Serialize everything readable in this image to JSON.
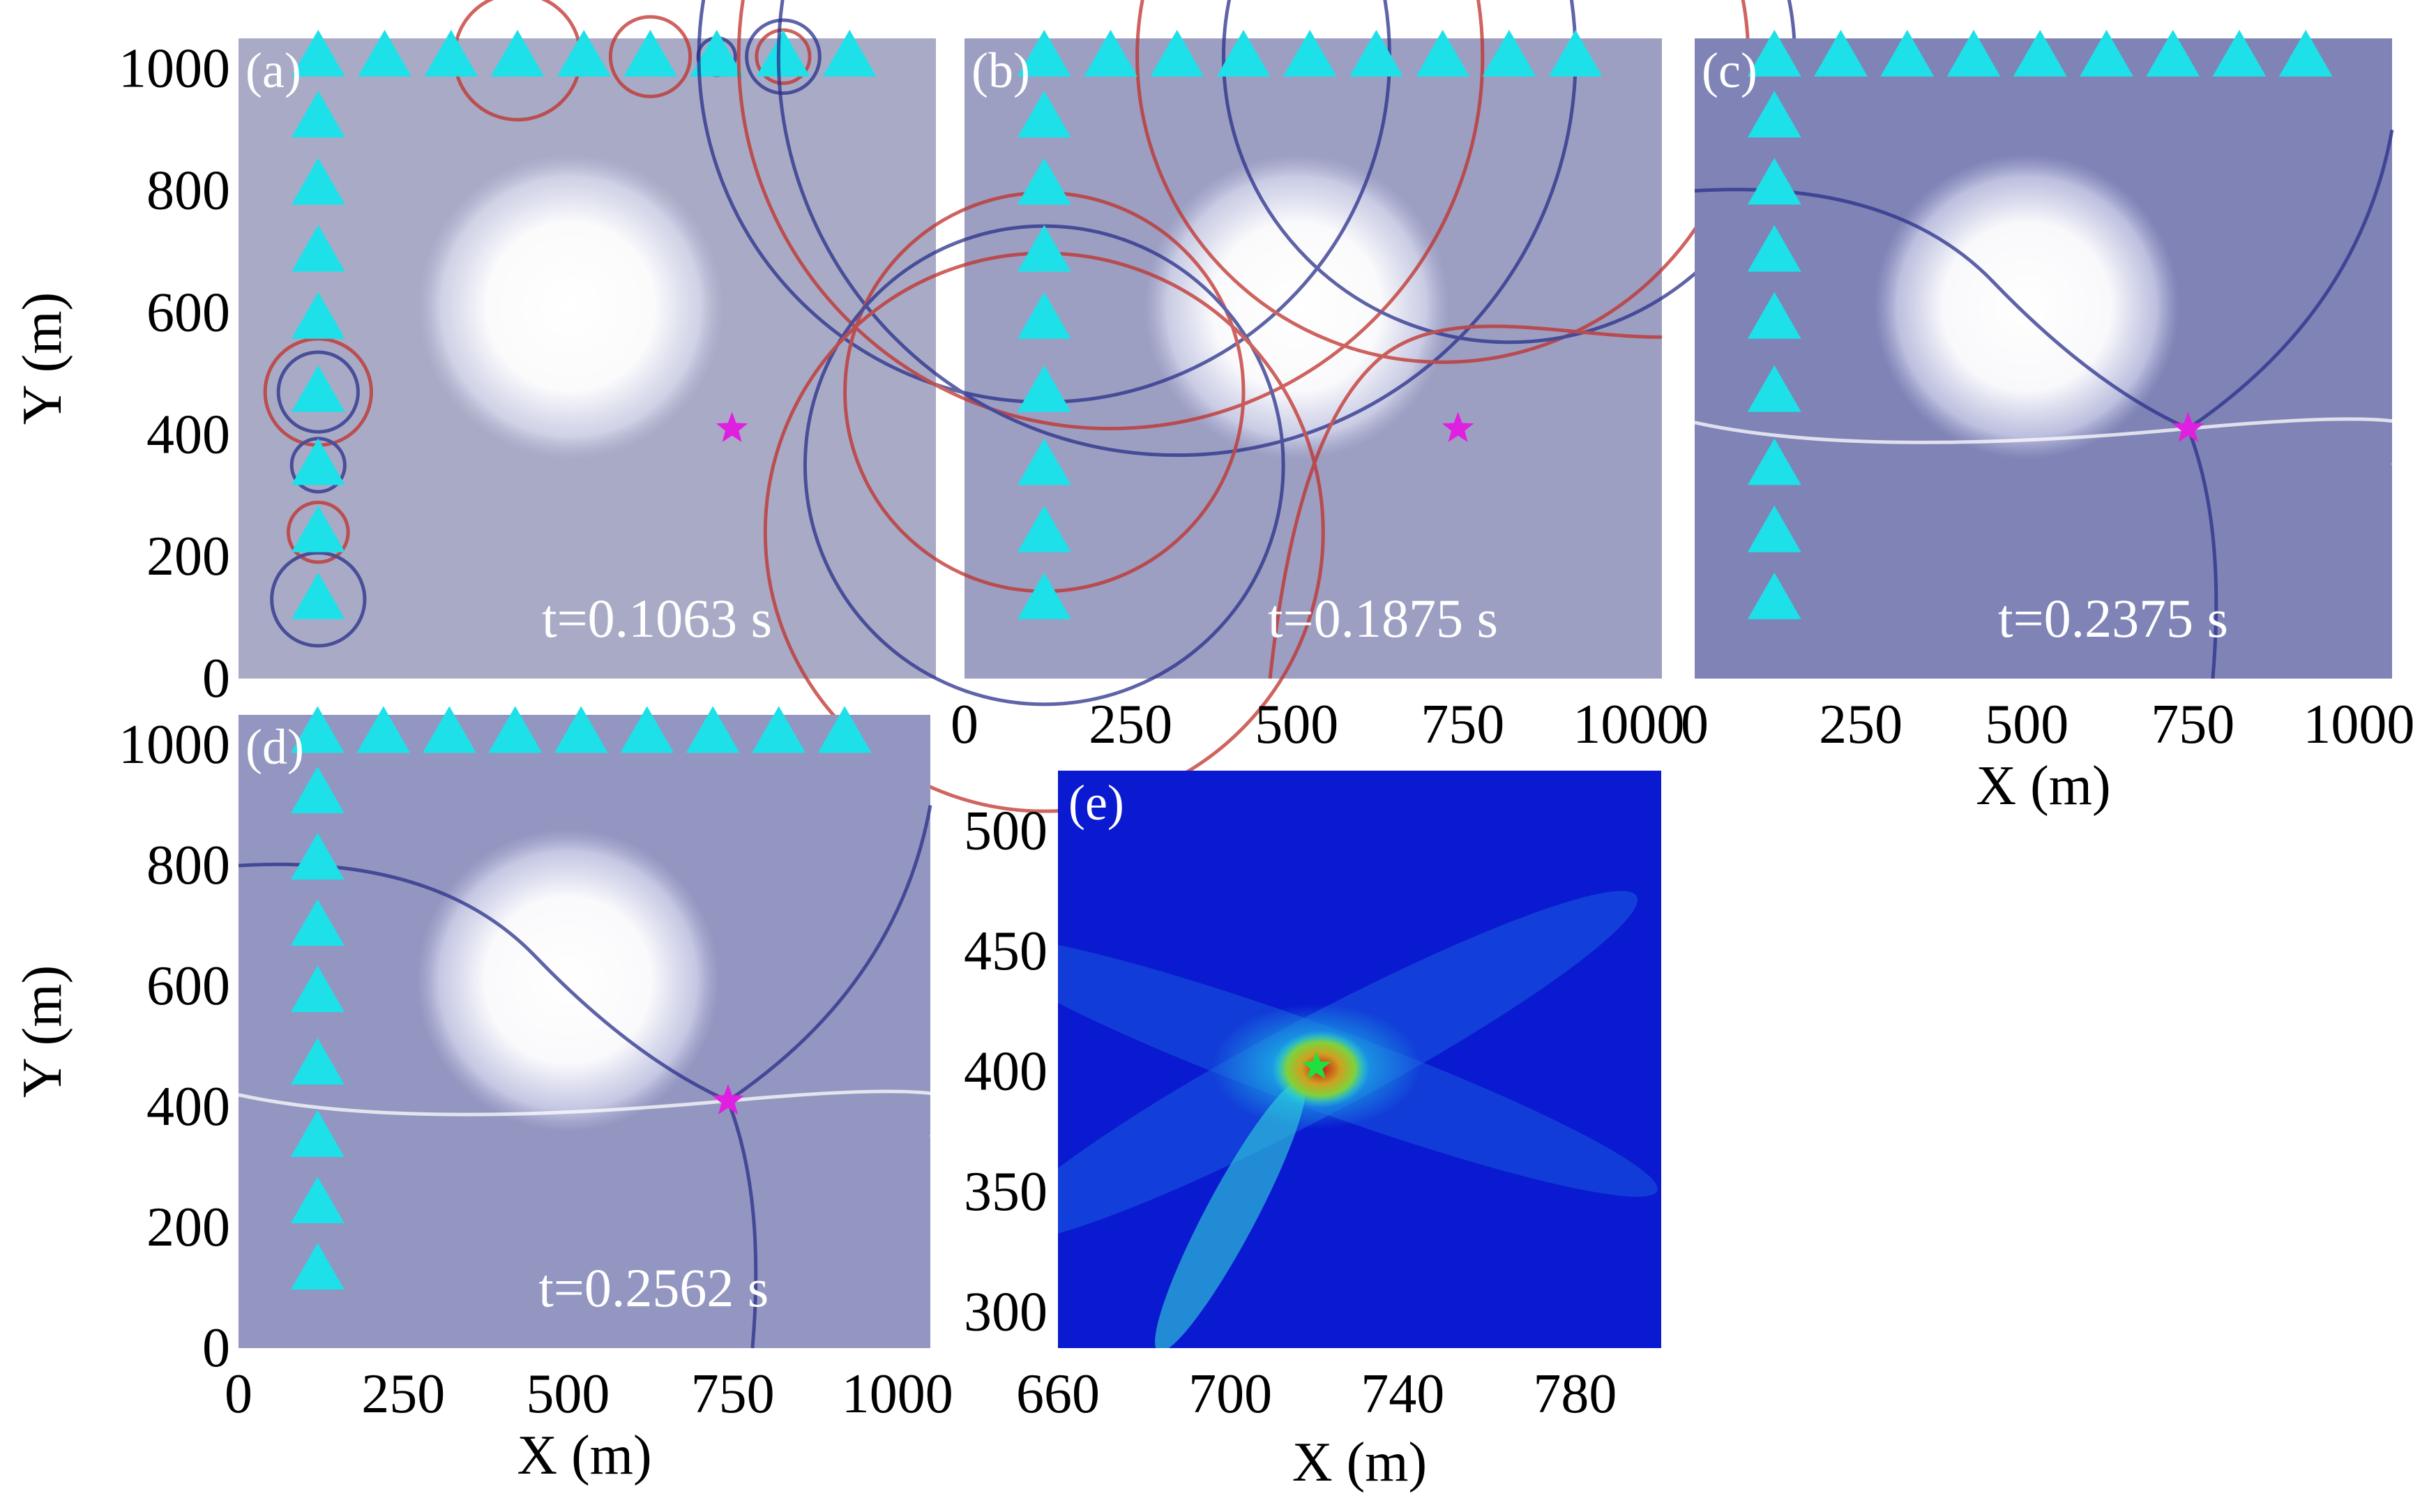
{
  "colors": {
    "panel_bg": "#9ea0c2",
    "panel_bg_dark": "#7c80b5",
    "anomaly": "#ffffff",
    "receiver": "#1ee0e8",
    "source": "#e020e0",
    "wave_red": "#c0302a",
    "wave_blue": "#2a2f8a",
    "map_low": "#0a1ad0",
    "map_mid": "#1ec8e0",
    "map_high": "#d02020"
  },
  "chart_data": [
    {
      "type": "wavefield_snapshot",
      "panel_label": "(a)",
      "time_label": "t=0.1063  s",
      "xlabel": "",
      "ylabel": "Y (m)",
      "xlim": [
        0,
        1050
      ],
      "ylim": [
        0,
        1050
      ],
      "xticks": [],
      "yticks": [
        "0",
        "200",
        "400",
        "600",
        "800",
        "1000"
      ],
      "source": {
        "x": 743,
        "y": 410
      },
      "receivers": [
        {
          "x": 120,
          "y": 1020
        },
        {
          "x": 220,
          "y": 1020
        },
        {
          "x": 320,
          "y": 1020
        },
        {
          "x": 420,
          "y": 1020
        },
        {
          "x": 520,
          "y": 1020
        },
        {
          "x": 620,
          "y": 1020
        },
        {
          "x": 720,
          "y": 1020
        },
        {
          "x": 820,
          "y": 1020
        },
        {
          "x": 920,
          "y": 1020
        },
        {
          "x": 120,
          "y": 920
        },
        {
          "x": 120,
          "y": 810
        },
        {
          "x": 120,
          "y": 700
        },
        {
          "x": 120,
          "y": 590
        },
        {
          "x": 120,
          "y": 470
        },
        {
          "x": 120,
          "y": 350
        },
        {
          "x": 120,
          "y": 240
        },
        {
          "x": 120,
          "y": 130
        }
      ],
      "anomaly": {
        "cx": 500,
        "cy": 610,
        "r": 230
      }
    },
    {
      "type": "wavefield_snapshot",
      "panel_label": "(b)",
      "time_label": "t=0.1875  s",
      "xlabel": "",
      "ylabel": "",
      "xlim": [
        0,
        1050
      ],
      "ylim": [
        0,
        1050
      ],
      "xticks": [
        "0",
        "250",
        "500",
        "750",
        "1000"
      ],
      "yticks": [],
      "source": {
        "x": 743,
        "y": 410
      },
      "receivers_same_as": "(a)",
      "anomaly": {
        "cx": 500,
        "cy": 610,
        "r": 230
      }
    },
    {
      "type": "wavefield_snapshot",
      "panel_label": "(c)",
      "time_label": "t=0.2375  s",
      "xlabel": "X (m)",
      "ylabel": "",
      "xlim": [
        0,
        1050
      ],
      "ylim": [
        0,
        1050
      ],
      "xticks": [
        "0",
        "250",
        "500",
        "750",
        "1000"
      ],
      "yticks": [],
      "source": {
        "x": 743,
        "y": 410
      },
      "receivers_same_as": "(a)",
      "anomaly": {
        "cx": 500,
        "cy": 610,
        "r": 230
      }
    },
    {
      "type": "wavefield_snapshot",
      "panel_label": "(d)",
      "time_label": "t=0.2562  s",
      "xlabel": "X (m)",
      "ylabel": "Y (m)",
      "xlim": [
        0,
        1050
      ],
      "ylim": [
        0,
        1050
      ],
      "xticks": [
        "0",
        "250",
        "500",
        "750",
        "1000"
      ],
      "yticks": [
        "0",
        "200",
        "400",
        "600",
        "800",
        "1000"
      ],
      "source": {
        "x": 743,
        "y": 410
      },
      "receivers_same_as": "(a)",
      "anomaly": {
        "cx": 500,
        "cy": 610,
        "r": 230
      }
    },
    {
      "type": "heatmap",
      "panel_label": "(e)",
      "xlabel": "X (m)",
      "ylabel": "",
      "xlim": [
        660,
        800
      ],
      "ylim": [
        285,
        525
      ],
      "xticks": [
        "660",
        "700",
        "740",
        "780"
      ],
      "yticks": [
        "300",
        "350",
        "400",
        "450",
        "500"
      ],
      "peak": {
        "x": 720,
        "y": 402
      },
      "colormap": "jet"
    }
  ]
}
